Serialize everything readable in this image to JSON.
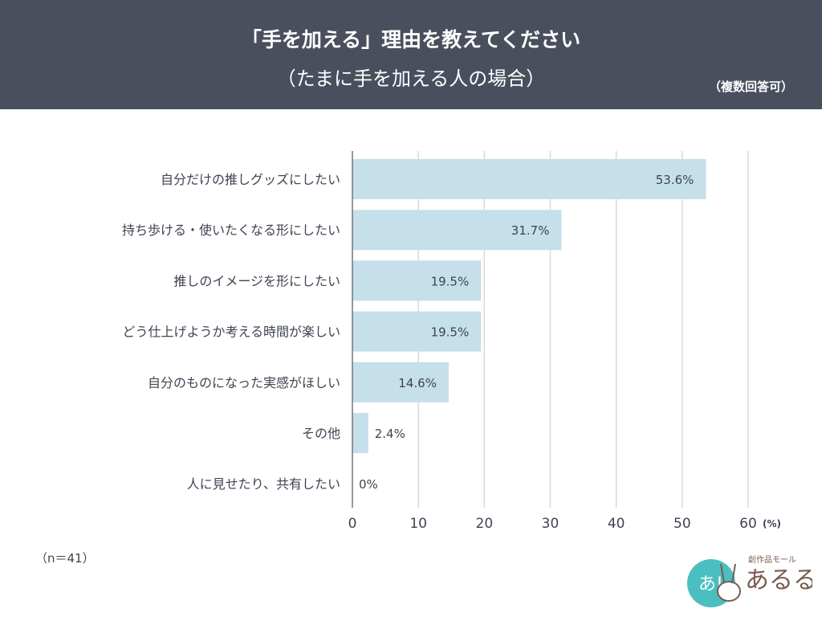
{
  "header": {
    "title": "「手を加える」理由を教えてください",
    "subtitle": "（たまに手を加える人の場合）",
    "note": "（複数回答可）"
  },
  "sample": "（n＝41）",
  "logo": {
    "text": "創作品モール あるる"
  },
  "colors": {
    "header": "#4a4f5e",
    "bar": "#c5dfeb",
    "text": "#3f4452",
    "grid": "#d9d9d9"
  },
  "chart_data": {
    "type": "bar",
    "orientation": "horizontal",
    "categories": [
      "自分だけの推しグッズにしたい",
      "持ち歩ける・使いたくなる形にしたい",
      "推しのイメージを形にしたい",
      "どう仕上げようか考える時間が楽しい",
      "自分のものになった実感がほしい",
      "その他",
      "人に見せたり、共有したい"
    ],
    "values": [
      53.6,
      31.7,
      19.5,
      19.5,
      14.6,
      2.4,
      0
    ],
    "data_labels": [
      "53.6%",
      "31.7%",
      "19.5%",
      "19.5%",
      "14.6%",
      "2.4%",
      "0%"
    ],
    "xlim": [
      0,
      60
    ],
    "xticks": [
      0,
      10,
      20,
      30,
      40,
      50,
      60
    ],
    "xunit": "(%)",
    "grid": true
  }
}
